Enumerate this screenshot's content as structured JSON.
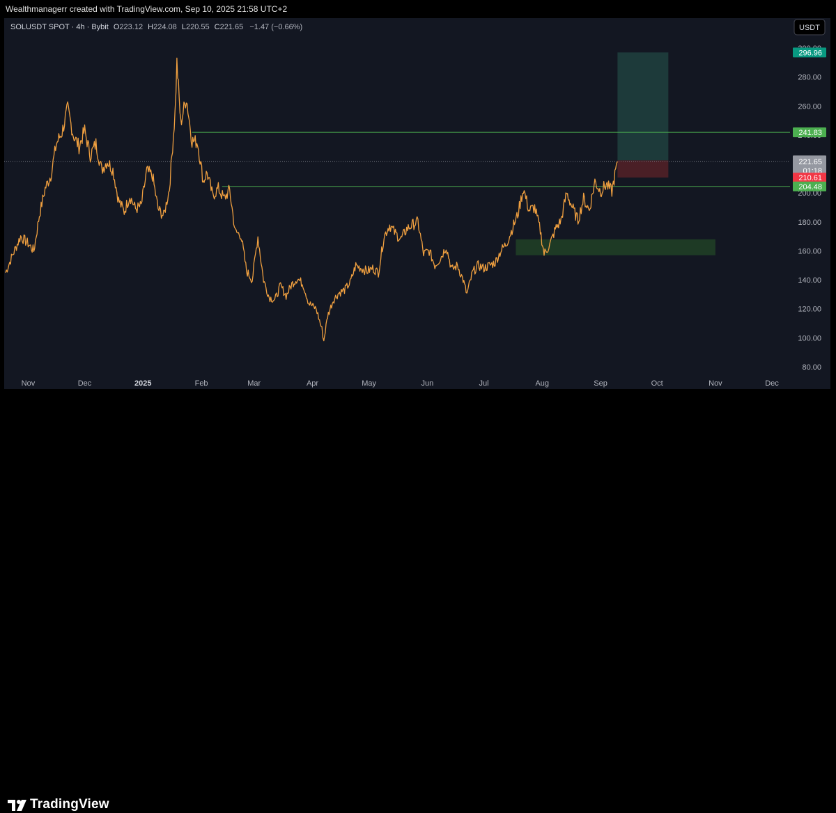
{
  "header": {
    "credit": "Wealthmanagerr created with TradingView.com, Sep 10, 2025 21:58 UTC+2"
  },
  "legend": {
    "symbol": "SOLUSDT SPOT · 4h · Bybit",
    "o_label": "O",
    "o_value": "223.12",
    "h_label": "H",
    "h_value": "224.08",
    "l_label": "L",
    "l_value": "220.55",
    "c_label": "C",
    "c_value": "221.65",
    "change": "−1.47 (−0.66%)"
  },
  "currency_button": "USDT",
  "footer": {
    "brand": "TradingView"
  },
  "colors": {
    "background": "#131722",
    "price_line": "#f0a040",
    "hline": "#4caf50",
    "target_zone": "#1d3a3a",
    "stop_zone": "#4a1f26",
    "demand_zone": "#1e3a25"
  },
  "chart_data": {
    "type": "line",
    "symbol": "SOLUSDT",
    "interval": "4h",
    "x_ticks": [
      "Nov",
      "Dec",
      "2025",
      "Feb",
      "Mar",
      "Apr",
      "May",
      "Jun",
      "Jul",
      "Aug",
      "Sep",
      "Oct",
      "Nov",
      "Dec"
    ],
    "x_tick_dates": [
      "2024-11-01",
      "2024-12-01",
      "2025-01-01",
      "2025-02-01",
      "2025-03-01",
      "2025-04-01",
      "2025-05-01",
      "2025-06-01",
      "2025-07-01",
      "2025-08-01",
      "2025-09-01",
      "2025-10-01",
      "2025-11-01",
      "2025-12-01"
    ],
    "y_ticks": [
      "80.00",
      "100.00",
      "120.00",
      "140.00",
      "160.00",
      "180.00",
      "200.00",
      "220.00",
      "240.00",
      "260.00",
      "280.00",
      "300.00"
    ],
    "ylim": [
      75,
      305
    ],
    "grid": false,
    "series": [
      {
        "points": [
          [
            "2024-10-20",
            145
          ],
          [
            "2024-10-24",
            158
          ],
          [
            "2024-10-28",
            170
          ],
          [
            "2024-11-01",
            165
          ],
          [
            "2024-11-04",
            160
          ],
          [
            "2024-11-07",
            185
          ],
          [
            "2024-11-10",
            203
          ],
          [
            "2024-11-13",
            212
          ],
          [
            "2024-11-16",
            234
          ],
          [
            "2024-11-19",
            242
          ],
          [
            "2024-11-22",
            258
          ],
          [
            "2024-11-25",
            240
          ],
          [
            "2024-11-28",
            232
          ],
          [
            "2024-12-01",
            243
          ],
          [
            "2024-12-04",
            226
          ],
          [
            "2024-12-07",
            234
          ],
          [
            "2024-12-10",
            216
          ],
          [
            "2024-12-13",
            222
          ],
          [
            "2024-12-16",
            216
          ],
          [
            "2024-12-19",
            195
          ],
          [
            "2024-12-22",
            187
          ],
          [
            "2024-12-25",
            198
          ],
          [
            "2024-12-28",
            189
          ],
          [
            "2024-12-31",
            191
          ],
          [
            "2025-01-03",
            215
          ],
          [
            "2025-01-06",
            212
          ],
          [
            "2025-01-09",
            189
          ],
          [
            "2025-01-12",
            184
          ],
          [
            "2025-01-15",
            203
          ],
          [
            "2025-01-18",
            255
          ],
          [
            "2025-01-19",
            290
          ],
          [
            "2025-01-21",
            248
          ],
          [
            "2025-01-24",
            266
          ],
          [
            "2025-01-27",
            236
          ],
          [
            "2025-01-30",
            235
          ],
          [
            "2025-02-02",
            208
          ],
          [
            "2025-02-04",
            214
          ],
          [
            "2025-02-07",
            198
          ],
          [
            "2025-02-10",
            203
          ],
          [
            "2025-02-13",
            196
          ],
          [
            "2025-02-16",
            202
          ],
          [
            "2025-02-19",
            173
          ],
          [
            "2025-02-22",
            171
          ],
          [
            "2025-02-25",
            146
          ],
          [
            "2025-02-28",
            140
          ],
          [
            "2025-03-03",
            170
          ],
          [
            "2025-03-06",
            140
          ],
          [
            "2025-03-09",
            128
          ],
          [
            "2025-03-12",
            126
          ],
          [
            "2025-03-15",
            136
          ],
          [
            "2025-03-18",
            129
          ],
          [
            "2025-03-21",
            137
          ],
          [
            "2025-03-24",
            141
          ],
          [
            "2025-03-27",
            137
          ],
          [
            "2025-03-30",
            124
          ],
          [
            "2025-04-03",
            120
          ],
          [
            "2025-04-06",
            106
          ],
          [
            "2025-04-07",
            98
          ],
          [
            "2025-04-09",
            115
          ],
          [
            "2025-04-12",
            126
          ],
          [
            "2025-04-15",
            131
          ],
          [
            "2025-04-18",
            133
          ],
          [
            "2025-04-21",
            138
          ],
          [
            "2025-04-24",
            150
          ],
          [
            "2025-04-27",
            148
          ],
          [
            "2025-04-30",
            146
          ],
          [
            "2025-05-03",
            148
          ],
          [
            "2025-05-06",
            145
          ],
          [
            "2025-05-09",
            170
          ],
          [
            "2025-05-12",
            178
          ],
          [
            "2025-05-15",
            172
          ],
          [
            "2025-05-18",
            168
          ],
          [
            "2025-05-21",
            175
          ],
          [
            "2025-05-24",
            178
          ],
          [
            "2025-05-27",
            180
          ],
          [
            "2025-05-30",
            158
          ],
          [
            "2025-06-02",
            160
          ],
          [
            "2025-06-05",
            150
          ],
          [
            "2025-06-08",
            155
          ],
          [
            "2025-06-11",
            163
          ],
          [
            "2025-06-14",
            147
          ],
          [
            "2025-06-17",
            150
          ],
          [
            "2025-06-20",
            140
          ],
          [
            "2025-06-22",
            130
          ],
          [
            "2025-06-25",
            145
          ],
          [
            "2025-06-28",
            150
          ],
          [
            "2025-07-01",
            148
          ],
          [
            "2025-07-04",
            150
          ],
          [
            "2025-07-07",
            152
          ],
          [
            "2025-07-10",
            160
          ],
          [
            "2025-07-13",
            165
          ],
          [
            "2025-07-16",
            175
          ],
          [
            "2025-07-19",
            185
          ],
          [
            "2025-07-22",
            203
          ],
          [
            "2025-07-25",
            188
          ],
          [
            "2025-07-28",
            190
          ],
          [
            "2025-07-31",
            174
          ],
          [
            "2025-08-02",
            158
          ],
          [
            "2025-08-05",
            164
          ],
          [
            "2025-08-08",
            175
          ],
          [
            "2025-08-11",
            181
          ],
          [
            "2025-08-14",
            200
          ],
          [
            "2025-08-17",
            190
          ],
          [
            "2025-08-20",
            181
          ],
          [
            "2025-08-23",
            196
          ],
          [
            "2025-08-26",
            188
          ],
          [
            "2025-08-29",
            208
          ],
          [
            "2025-09-01",
            201
          ],
          [
            "2025-09-04",
            206
          ],
          [
            "2025-09-07",
            201
          ],
          [
            "2025-09-09",
            215
          ],
          [
            "2025-09-10",
            221.65
          ]
        ]
      }
    ],
    "horizontal_lines": [
      {
        "value": 241.83,
        "from": "2025-01-27",
        "label": "241.83"
      },
      {
        "value": 204.48,
        "from": "2025-02-12",
        "label": "204.48"
      }
    ],
    "annotations": [
      {
        "type": "position_target_zone",
        "from": "2025-09-10",
        "to": "2025-10-07",
        "y_from": 222.46,
        "y_to": 296.96
      },
      {
        "type": "position_stop_zone",
        "from": "2025-09-10",
        "to": "2025-10-07",
        "y_from": 210.61,
        "y_to": 222.46
      },
      {
        "type": "demand_zone",
        "from": "2025-07-18",
        "to": "2025-11-01",
        "y_from": 157,
        "y_to": 168
      }
    ],
    "price_labels": [
      {
        "value": 296.96,
        "text": "296.96",
        "color": "#089981"
      },
      {
        "value": 241.83,
        "text": "241.83",
        "color": "#4caf50"
      },
      {
        "value": 222.46,
        "text": "222.46",
        "color": "#9598a1"
      },
      {
        "value": 221.65,
        "text": "221.65",
        "countdown": "01:18",
        "color": "#9598a1"
      },
      {
        "value": 210.61,
        "text": "210.61",
        "color": "#f23645"
      },
      {
        "value": 204.48,
        "text": "204.48",
        "color": "#4caf50"
      }
    ],
    "last_price": 221.65
  }
}
